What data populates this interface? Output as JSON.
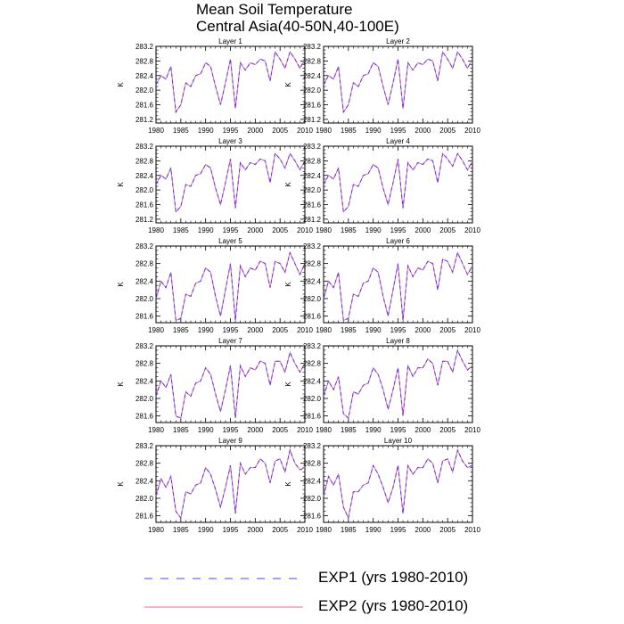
{
  "title": {
    "line1": "Mean Soil Temperature",
    "line2": "Central Asia(40-50N,40-100E)"
  },
  "legend": {
    "exp1": {
      "label": "EXP1 (yrs 1980-2010)",
      "color": "#4040ff",
      "style": "dashed"
    },
    "exp2": {
      "label": "EXP2 (yrs 1980-2010)",
      "color": "#ff6688",
      "style": "solid"
    }
  },
  "chart_data": [
    {
      "type": "line",
      "title": "Layer 1",
      "ylabel": "K",
      "xlim": [
        1980,
        2010
      ],
      "ylim": [
        281.1,
        283.2
      ],
      "xticks": [
        1980,
        1985,
        1990,
        1995,
        2000,
        2005,
        2010
      ],
      "yticks": [
        "281.2",
        "281.6",
        "282.0",
        "282.4",
        "282.8",
        "283.2"
      ],
      "series": [
        {
          "name": "EXP1 (yrs 1980-2010)",
          "values": [
            282.15,
            282.4,
            282.3,
            282.65,
            281.4,
            281.6,
            282.2,
            282.1,
            282.4,
            282.45,
            282.75,
            282.65,
            282.1,
            281.6,
            282.2,
            282.85,
            281.5,
            282.75,
            282.55,
            282.75,
            282.7,
            282.85,
            282.8,
            282.25,
            283.05,
            282.85,
            282.6,
            283.05,
            282.85,
            282.6,
            282.85
          ]
        },
        {
          "name": "EXP2 (yrs 1980-2010)",
          "values": [
            282.15,
            282.4,
            282.3,
            282.65,
            281.4,
            281.6,
            282.2,
            282.1,
            282.4,
            282.45,
            282.75,
            282.65,
            282.1,
            281.6,
            282.2,
            282.85,
            281.5,
            282.75,
            282.55,
            282.75,
            282.7,
            282.85,
            282.8,
            282.25,
            283.05,
            282.85,
            282.6,
            283.05,
            282.85,
            282.6,
            282.85
          ]
        }
      ]
    },
    {
      "type": "line",
      "title": "Layer 2",
      "ylabel": "K",
      "xlim": [
        1980,
        2010
      ],
      "ylim": [
        281.1,
        283.2
      ],
      "xticks": [
        1980,
        1985,
        1990,
        1995,
        2000,
        2005,
        2010
      ],
      "yticks": [
        "281.2",
        "281.6",
        "282.0",
        "282.4",
        "282.8",
        "283.2"
      ],
      "series": [
        {
          "name": "EXP1 (yrs 1980-2010)",
          "values": [
            282.15,
            282.4,
            282.3,
            282.65,
            281.4,
            281.6,
            282.2,
            282.1,
            282.4,
            282.45,
            282.75,
            282.65,
            282.1,
            281.6,
            282.2,
            282.85,
            281.5,
            282.75,
            282.55,
            282.75,
            282.7,
            282.85,
            282.8,
            282.25,
            283.05,
            282.85,
            282.6,
            283.05,
            282.85,
            282.6,
            282.85
          ]
        },
        {
          "name": "EXP2 (yrs 1980-2010)",
          "values": [
            282.15,
            282.4,
            282.3,
            282.65,
            281.4,
            281.6,
            282.2,
            282.1,
            282.4,
            282.45,
            282.75,
            282.65,
            282.1,
            281.6,
            282.2,
            282.85,
            281.5,
            282.75,
            282.55,
            282.75,
            282.7,
            282.85,
            282.8,
            282.25,
            283.05,
            282.85,
            282.6,
            283.05,
            282.85,
            282.6,
            282.85
          ]
        }
      ]
    },
    {
      "type": "line",
      "title": "Layer 3",
      "ylabel": "K",
      "xlim": [
        1980,
        2010
      ],
      "ylim": [
        281.1,
        283.2
      ],
      "xticks": [
        1980,
        1985,
        1990,
        1995,
        2000,
        2005,
        2010
      ],
      "yticks": [
        "281.2",
        "281.6",
        "282.0",
        "282.4",
        "282.8",
        "283.2"
      ],
      "series": [
        {
          "name": "EXP1 (yrs 1980-2010)",
          "values": [
            282.15,
            282.4,
            282.3,
            282.6,
            281.4,
            281.55,
            282.15,
            282.1,
            282.4,
            282.45,
            282.7,
            282.6,
            282.05,
            281.6,
            282.2,
            282.85,
            281.5,
            282.75,
            282.55,
            282.75,
            282.7,
            282.85,
            282.8,
            282.2,
            283.0,
            282.85,
            282.6,
            283.0,
            282.8,
            282.55,
            282.8
          ]
        },
        {
          "name": "EXP2 (yrs 1980-2010)",
          "values": [
            282.15,
            282.4,
            282.3,
            282.6,
            281.4,
            281.55,
            282.15,
            282.1,
            282.4,
            282.45,
            282.7,
            282.6,
            282.05,
            281.6,
            282.2,
            282.85,
            281.5,
            282.75,
            282.55,
            282.75,
            282.7,
            282.85,
            282.8,
            282.2,
            283.0,
            282.85,
            282.6,
            283.0,
            282.8,
            282.55,
            282.8
          ]
        }
      ]
    },
    {
      "type": "line",
      "title": "Layer 4",
      "ylabel": "K",
      "xlim": [
        1980,
        2010
      ],
      "ylim": [
        281.1,
        283.2
      ],
      "xticks": [
        1980,
        1985,
        1990,
        1995,
        2000,
        2005,
        2010
      ],
      "yticks": [
        "281.2",
        "281.6",
        "282.0",
        "282.4",
        "282.8",
        "283.2"
      ],
      "series": [
        {
          "name": "EXP1 (yrs 1980-2010)",
          "values": [
            282.15,
            282.4,
            282.3,
            282.6,
            281.4,
            281.55,
            282.15,
            282.1,
            282.4,
            282.45,
            282.7,
            282.6,
            282.05,
            281.6,
            282.2,
            282.85,
            281.5,
            282.75,
            282.55,
            282.75,
            282.7,
            282.85,
            282.8,
            282.2,
            283.0,
            282.85,
            282.65,
            283.0,
            282.8,
            282.55,
            282.8
          ]
        },
        {
          "name": "EXP2 (yrs 1980-2010)",
          "values": [
            282.15,
            282.4,
            282.3,
            282.6,
            281.4,
            281.55,
            282.15,
            282.1,
            282.4,
            282.45,
            282.7,
            282.6,
            282.05,
            281.6,
            282.2,
            282.85,
            281.5,
            282.75,
            282.55,
            282.75,
            282.7,
            282.85,
            282.8,
            282.2,
            283.0,
            282.85,
            282.65,
            283.0,
            282.8,
            282.55,
            282.8
          ]
        }
      ]
    },
    {
      "type": "line",
      "title": "Layer 5",
      "ylabel": "K",
      "xlim": [
        1980,
        2010
      ],
      "ylim": [
        281.45,
        283.2
      ],
      "xticks": [
        1980,
        1985,
        1990,
        1995,
        2000,
        2005,
        2010
      ],
      "yticks": [
        "281.6",
        "282.0",
        "282.4",
        "282.8",
        "283.2"
      ],
      "series": [
        {
          "name": "EXP1 (yrs 1980-2010)",
          "values": [
            282.0,
            282.4,
            282.25,
            282.6,
            281.5,
            281.55,
            282.1,
            282.05,
            282.35,
            282.4,
            282.7,
            282.6,
            282.05,
            281.6,
            282.2,
            282.8,
            281.5,
            282.75,
            282.5,
            282.7,
            282.65,
            282.85,
            282.8,
            282.25,
            282.85,
            282.8,
            282.6,
            283.05,
            282.8,
            282.55,
            282.8
          ]
        },
        {
          "name": "EXP2 (yrs 1980-2010)",
          "values": [
            282.0,
            282.4,
            282.25,
            282.6,
            281.5,
            281.55,
            282.1,
            282.05,
            282.35,
            282.4,
            282.7,
            282.6,
            282.05,
            281.6,
            282.2,
            282.8,
            281.5,
            282.75,
            282.5,
            282.7,
            282.65,
            282.85,
            282.8,
            282.25,
            282.85,
            282.8,
            282.6,
            283.05,
            282.8,
            282.55,
            282.8
          ]
        }
      ]
    },
    {
      "type": "line",
      "title": "Layer 6",
      "ylabel": "K",
      "xlim": [
        1980,
        2010
      ],
      "ylim": [
        281.45,
        283.2
      ],
      "xticks": [
        1980,
        1985,
        1990,
        1995,
        2000,
        2005,
        2010
      ],
      "yticks": [
        "281.6",
        "282.0",
        "282.4",
        "282.8",
        "283.2"
      ],
      "series": [
        {
          "name": "EXP1 (yrs 1980-2010)",
          "values": [
            282.0,
            282.4,
            282.25,
            282.6,
            281.5,
            281.55,
            282.1,
            282.05,
            282.35,
            282.4,
            282.7,
            282.6,
            282.05,
            281.6,
            282.2,
            282.8,
            281.5,
            282.75,
            282.5,
            282.7,
            282.65,
            282.85,
            282.8,
            282.2,
            282.9,
            282.85,
            282.6,
            283.05,
            282.8,
            282.55,
            282.75
          ]
        },
        {
          "name": "EXP2 (yrs 1980-2010)",
          "values": [
            282.0,
            282.4,
            282.25,
            282.6,
            281.5,
            281.55,
            282.1,
            282.05,
            282.35,
            282.4,
            282.7,
            282.6,
            282.05,
            281.6,
            282.2,
            282.8,
            281.5,
            282.75,
            282.5,
            282.7,
            282.65,
            282.85,
            282.8,
            282.2,
            282.9,
            282.85,
            282.6,
            283.05,
            282.8,
            282.55,
            282.75
          ]
        }
      ]
    },
    {
      "type": "line",
      "title": "Layer 7",
      "ylabel": "K",
      "xlim": [
        1980,
        2010
      ],
      "ylim": [
        281.45,
        283.2
      ],
      "xticks": [
        1980,
        1985,
        1990,
        1995,
        2000,
        2005,
        2010
      ],
      "yticks": [
        "281.6",
        "282.0",
        "282.4",
        "282.8",
        "283.2"
      ],
      "series": [
        {
          "name": "EXP1 (yrs 1980-2010)",
          "values": [
            282.05,
            282.4,
            282.25,
            282.55,
            281.6,
            281.55,
            282.15,
            282.05,
            282.35,
            282.4,
            282.7,
            282.55,
            282.1,
            281.7,
            282.2,
            282.75,
            281.55,
            282.75,
            282.5,
            282.7,
            282.65,
            282.85,
            282.8,
            282.3,
            282.85,
            282.85,
            282.6,
            283.05,
            282.8,
            282.6,
            282.8
          ]
        },
        {
          "name": "EXP2 (yrs 1980-2010)",
          "values": [
            282.05,
            282.4,
            282.25,
            282.55,
            281.6,
            281.55,
            282.15,
            282.05,
            282.35,
            282.4,
            282.7,
            282.55,
            282.1,
            281.7,
            282.2,
            282.75,
            281.55,
            282.75,
            282.5,
            282.7,
            282.65,
            282.85,
            282.8,
            282.3,
            282.85,
            282.85,
            282.6,
            283.05,
            282.8,
            282.6,
            282.8
          ]
        }
      ]
    },
    {
      "type": "line",
      "title": "Layer 8",
      "ylabel": "K",
      "xlim": [
        1980,
        2010
      ],
      "ylim": [
        281.45,
        283.2
      ],
      "xticks": [
        1980,
        1985,
        1990,
        1995,
        2000,
        2005,
        2010
      ],
      "yticks": [
        "281.6",
        "282.0",
        "282.4",
        "282.8",
        "283.2"
      ],
      "series": [
        {
          "name": "EXP1 (yrs 1980-2010)",
          "values": [
            282.05,
            282.4,
            282.2,
            282.5,
            281.65,
            281.55,
            282.15,
            282.1,
            282.3,
            282.35,
            282.7,
            282.55,
            282.2,
            281.75,
            282.2,
            282.7,
            281.6,
            282.75,
            282.5,
            282.7,
            282.7,
            282.9,
            282.8,
            282.3,
            282.85,
            282.85,
            282.6,
            283.1,
            282.85,
            282.65,
            282.75
          ]
        },
        {
          "name": "EXP2 (yrs 1980-2010)",
          "values": [
            282.05,
            282.4,
            282.2,
            282.5,
            281.65,
            281.55,
            282.15,
            282.1,
            282.3,
            282.35,
            282.7,
            282.55,
            282.2,
            281.75,
            282.2,
            282.7,
            281.6,
            282.75,
            282.5,
            282.7,
            282.7,
            282.9,
            282.8,
            282.3,
            282.85,
            282.85,
            282.6,
            283.1,
            282.85,
            282.65,
            282.75
          ]
        }
      ]
    },
    {
      "type": "line",
      "title": "Layer 9",
      "ylabel": "K",
      "xlim": [
        1980,
        2010
      ],
      "ylim": [
        281.45,
        283.2
      ],
      "xticks": [
        1980,
        1985,
        1990,
        1995,
        2000,
        2005,
        2010
      ],
      "yticks": [
        "281.6",
        "282.0",
        "282.4",
        "282.8",
        "283.2"
      ],
      "series": [
        {
          "name": "EXP1 (yrs 1980-2010)",
          "values": [
            282.05,
            282.45,
            282.25,
            282.5,
            281.7,
            281.55,
            282.15,
            282.1,
            282.3,
            282.35,
            282.7,
            282.55,
            282.2,
            281.8,
            282.25,
            282.75,
            281.65,
            282.8,
            282.55,
            282.7,
            282.7,
            282.9,
            282.8,
            282.35,
            282.85,
            282.9,
            282.6,
            283.1,
            282.8,
            282.65,
            282.7
          ]
        },
        {
          "name": "EXP2 (yrs 1980-2010)",
          "values": [
            282.05,
            282.45,
            282.25,
            282.5,
            281.7,
            281.55,
            282.15,
            282.1,
            282.3,
            282.35,
            282.7,
            282.55,
            282.2,
            281.8,
            282.25,
            282.75,
            281.65,
            282.8,
            282.55,
            282.7,
            282.7,
            282.9,
            282.8,
            282.35,
            282.85,
            282.9,
            282.6,
            283.1,
            282.8,
            282.65,
            282.7
          ]
        }
      ]
    },
    {
      "type": "line",
      "title": "Layer 10",
      "ylabel": "K",
      "xlim": [
        1980,
        2010
      ],
      "ylim": [
        281.45,
        283.2
      ],
      "xticks": [
        1980,
        1985,
        1990,
        1995,
        2000,
        2005,
        2010
      ],
      "yticks": [
        "281.6",
        "282.0",
        "282.4",
        "282.8",
        "283.2"
      ],
      "series": [
        {
          "name": "EXP1 (yrs 1980-2010)",
          "values": [
            282.05,
            282.5,
            282.3,
            282.55,
            281.8,
            281.55,
            282.15,
            282.15,
            282.3,
            282.35,
            282.75,
            282.55,
            282.25,
            281.9,
            282.25,
            282.75,
            281.65,
            282.75,
            282.55,
            282.7,
            282.7,
            282.9,
            282.8,
            282.35,
            282.85,
            282.9,
            282.6,
            283.1,
            282.85,
            282.7,
            282.75
          ]
        },
        {
          "name": "EXP2 (yrs 1980-2010)",
          "values": [
            282.05,
            282.5,
            282.3,
            282.55,
            281.8,
            281.55,
            282.15,
            282.15,
            282.3,
            282.35,
            282.75,
            282.55,
            282.25,
            281.9,
            282.25,
            282.75,
            281.65,
            282.75,
            282.55,
            282.7,
            282.7,
            282.9,
            282.8,
            282.35,
            282.85,
            282.9,
            282.6,
            283.1,
            282.85,
            282.7,
            282.75
          ]
        }
      ]
    }
  ]
}
